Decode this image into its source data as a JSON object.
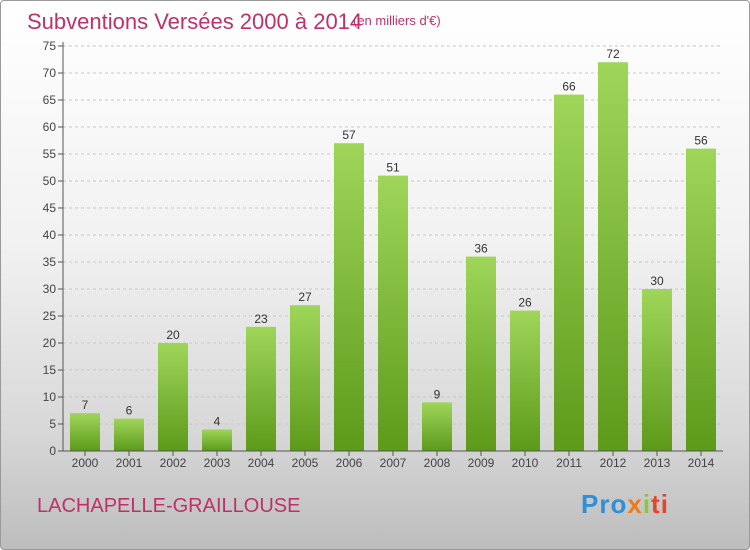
{
  "header": {
    "title": "Subventions Versées 2000 à 2014",
    "unit": "(en milliers d'€)"
  },
  "footer": {
    "place": "LACHAPELLE-GRAILLOUSE",
    "logo": {
      "text": "Proxiti",
      "parts": [
        "Pro",
        "x",
        "i",
        "ti"
      ],
      "colors": [
        "#2f8fd8",
        "#f07a1a",
        "#8cc63f",
        "#e8442a"
      ]
    }
  },
  "colors": {
    "bar_light": "#9fd65a",
    "bar_dark": "#5d9a1a",
    "title": "#c0306a"
  },
  "chart_data": {
    "type": "bar",
    "title": "Subventions Versées 2000 à 2014",
    "subtitle": "(en milliers d'€)",
    "categories": [
      "2000",
      "2001",
      "2002",
      "2003",
      "2004",
      "2005",
      "2006",
      "2007",
      "2008",
      "2009",
      "2010",
      "2011",
      "2012",
      "2013",
      "2014"
    ],
    "values": [
      7,
      6,
      20,
      4,
      23,
      27,
      57,
      51,
      9,
      36,
      26,
      66,
      72,
      30,
      56
    ],
    "ylim": [
      0,
      75
    ],
    "yticks": [
      0,
      5,
      10,
      15,
      20,
      25,
      30,
      35,
      40,
      45,
      50,
      55,
      60,
      65,
      70,
      75
    ],
    "grid": true,
    "data_labels": true
  }
}
